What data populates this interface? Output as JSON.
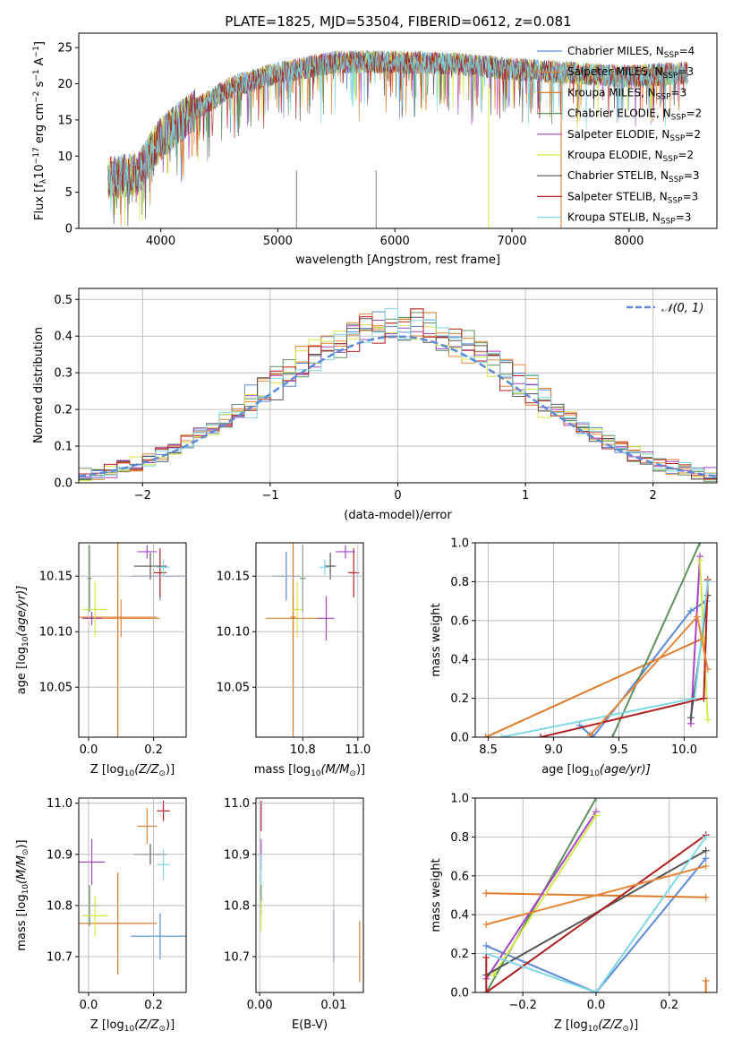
{
  "title": "PLATE=1825, MJD=53504, FIBERID=0612, z=0.081",
  "colors": {
    "Chabrier MILES": "#5b8ad6",
    "Salpeter MILES": "#e6873a",
    "Kroupa MILES": "#dd7a2a",
    "Chabrier ELODIE": "#5e8f5e",
    "Salpeter ELODIE": "#a845c4",
    "Kroupa ELODIE": "#d4e84a",
    "Chabrier STELIB": "#555555",
    "Salpeter STELIB": "#b02020",
    "Kroupa STELIB": "#80d8e6",
    "data": "#808080",
    "gauss": "#5b8ad6"
  },
  "chart_data": [
    {
      "type": "line",
      "xlabel": "wavelength [Angstrom, rest frame]",
      "ylabel": "Flux [f_λ 10^-17 erg cm^-2 s^-1 A^-1]",
      "xlim": [
        3300,
        8750
      ],
      "ylim": [
        0,
        27
      ],
      "xticks": [
        4000,
        5000,
        6000,
        7000,
        8000
      ],
      "yticks": [
        0,
        5,
        10,
        15,
        20,
        25
      ],
      "legend_position": "upper right",
      "spectrum_trend": {
        "x": [
          3550,
          3800,
          4000,
          4300,
          4600,
          5000,
          5500,
          6000,
          6500,
          7000,
          7500,
          8000,
          8500
        ],
        "y": [
          7,
          7.5,
          12.5,
          16.5,
          19.5,
          21.5,
          23,
          23,
          22.8,
          22,
          21.5,
          21,
          21.5
        ]
      },
      "legend": [
        {
          "name": "Chabrier MILES",
          "label": "Chabrier MILES, N",
          "sub": "SSP",
          "suffix": "=4"
        },
        {
          "name": "Salpeter MILES",
          "label": "Salpeter MILES, N",
          "sub": "SSP",
          "suffix": "=3"
        },
        {
          "name": "Kroupa MILES",
          "label": "Kroupa MILES, N",
          "sub": "SSP",
          "suffix": "=3"
        },
        {
          "name": "Chabrier ELODIE",
          "label": "Chabrier ELODIE, N",
          "sub": "SSP",
          "suffix": "=2"
        },
        {
          "name": "Salpeter ELODIE",
          "label": "Salpeter ELODIE, N",
          "sub": "SSP",
          "suffix": "=2"
        },
        {
          "name": "Kroupa ELODIE",
          "label": "Kroupa ELODIE, N",
          "sub": "SSP",
          "suffix": "=2"
        },
        {
          "name": "Chabrier STELIB",
          "label": "Chabrier STELIB, N",
          "sub": "SSP",
          "suffix": "=3"
        },
        {
          "name": "Salpeter STELIB",
          "label": "Salpeter STELIB, N",
          "sub": "SSP",
          "suffix": "=3"
        },
        {
          "name": "Kroupa STELIB",
          "label": "Kroupa STELIB, N",
          "sub": "SSP",
          "suffix": "=3"
        }
      ],
      "vertical_spikes": [
        5160,
        5840,
        6800,
        7420
      ]
    },
    {
      "type": "histogram",
      "xlabel": "(data-model)/error",
      "ylabel": "Normed distribution",
      "xlim": [
        -2.5,
        2.5
      ],
      "ylim": [
        0,
        0.53
      ],
      "xticks": [
        -2,
        -1,
        0,
        1,
        2
      ],
      "yticks": [
        0.0,
        0.1,
        0.2,
        0.3,
        0.4,
        0.5
      ],
      "grid": true,
      "gauss_label": "𝒩(0, 1)",
      "bins": [
        -2.5,
        2.5,
        50
      ],
      "series_order": [
        "Chabrier MILES",
        "Salpeter MILES",
        "Kroupa MILES",
        "Chabrier ELODIE",
        "Salpeter ELODIE",
        "Kroupa ELODIE",
        "Chabrier STELIB",
        "Salpeter STELIB",
        "Kroupa STELIB"
      ]
    },
    {
      "type": "errorbar",
      "xlabel": "Z [log10(Z/Z⊙)]",
      "ylabel": "age  [log10(age/yr)]",
      "xlim": [
        -0.03,
        0.3
      ],
      "ylim": [
        10.005,
        10.18
      ],
      "xticks": [
        0.0,
        0.2
      ],
      "yticks": [
        10.05,
        10.1,
        10.15
      ],
      "points": [
        {
          "name": "Chabrier MILES",
          "x": 0.22,
          "y": 10.15,
          "ex": 0.09,
          "ey": 0.022
        },
        {
          "name": "Salpeter MILES",
          "x": 0.1,
          "y": 10.112,
          "ex": 0.12,
          "ey": 0.017
        },
        {
          "name": "Kroupa MILES",
          "x": 0.09,
          "y": 10.113,
          "ex": 0.12,
          "ey": 0.11
        },
        {
          "name": "Chabrier ELODIE",
          "x": 0.003,
          "y": 10.148,
          "ex": 0.006,
          "ey": 0.03
        },
        {
          "name": "Salpeter ELODIE",
          "x": 0.01,
          "y": 10.112,
          "ex": 0.03,
          "ey": 0.006
        },
        {
          "name": "Kroupa ELODIE",
          "x": 0.02,
          "y": 10.12,
          "ex": 0.04,
          "ey": 0.025
        },
        {
          "name": "Chabrier STELIB",
          "x": 0.19,
          "y": 10.159,
          "ex": 0.05,
          "ey": 0.012
        },
        {
          "name": "Salpeter STELIB",
          "x": 0.22,
          "y": 10.153,
          "ex": 0.02,
          "ey": 0.022
        },
        {
          "name": "Kroupa STELIB",
          "x": 0.23,
          "y": 10.158,
          "ex": 0.02,
          "ey": 0.007
        },
        {
          "name": "Salpeter ELODIE",
          "x": 0.18,
          "y": 10.172,
          "ex": 0.03,
          "ey": 0.006
        }
      ]
    },
    {
      "type": "errorbar",
      "xlabel": "mass [log10(M/M⊙)]",
      "ylabel": "",
      "xlim": [
        10.63,
        11.02
      ],
      "ylim": [
        10.005,
        10.18
      ],
      "xticks": [
        10.8,
        11.0
      ],
      "yticks": [
        10.05,
        10.1,
        10.15
      ],
      "points": [
        {
          "name": "Chabrier MILES",
          "x": 10.74,
          "y": 10.15,
          "ex": 0.05,
          "ey": 0.022
        },
        {
          "name": "Salpeter MILES",
          "x": 10.765,
          "y": 10.112,
          "ex": 0.1,
          "ey": 0.017
        },
        {
          "name": "Kroupa MILES",
          "x": 10.765,
          "y": 10.113,
          "ex": 0.01,
          "ey": 0.11
        },
        {
          "name": "Chabrier ELODIE",
          "x": 10.8,
          "y": 10.148,
          "ex": 0.01,
          "ey": 0.03
        },
        {
          "name": "Salpeter ELODIE",
          "x": 10.885,
          "y": 10.112,
          "ex": 0.03,
          "ey": 0.02
        },
        {
          "name": "Kroupa ELODIE",
          "x": 10.78,
          "y": 10.12,
          "ex": 0.02,
          "ey": 0.025
        },
        {
          "name": "Chabrier STELIB",
          "x": 10.9,
          "y": 10.159,
          "ex": 0.02,
          "ey": 0.012
        },
        {
          "name": "Salpeter STELIB",
          "x": 10.985,
          "y": 10.153,
          "ex": 0.02,
          "ey": 0.022
        },
        {
          "name": "Kroupa STELIB",
          "x": 10.88,
          "y": 10.158,
          "ex": 0.02,
          "ey": 0.007
        },
        {
          "name": "Salpeter ELODIE",
          "x": 10.955,
          "y": 10.172,
          "ex": 0.035,
          "ey": 0.006
        }
      ]
    },
    {
      "type": "line",
      "xlabel": "age  [log10(age/yr)]",
      "ylabel": "mass weight",
      "xlim": [
        8.4,
        10.25
      ],
      "ylim": [
        0,
        1.0
      ],
      "xticks": [
        8.5,
        9.0,
        9.5,
        10.0
      ],
      "yticks": [
        0.0,
        0.2,
        0.4,
        0.6,
        0.8,
        1.0
      ],
      "grid": true,
      "series": [
        {
          "name": "Chabrier MILES",
          "x": [
            9.2,
            9.3,
            10.05,
            10.17
          ],
          "y": [
            0.06,
            0.0,
            0.65,
            0.7
          ]
        },
        {
          "name": "Kroupa MILES",
          "x": [
            8.48,
            10.15
          ],
          "y": [
            0.0,
            0.51
          ]
        },
        {
          "name": "Chabrier ELODIE",
          "x": [
            9.45,
            10.12
          ],
          "y": [
            0.0,
            1.0
          ]
        },
        {
          "name": "Salpeter ELODIE",
          "x": [
            10.05,
            10.12
          ],
          "y": [
            0.07,
            0.93
          ]
        },
        {
          "name": "Kroupa ELODIE",
          "x": [
            10.12,
            10.18
          ],
          "y": [
            0.91,
            0.09
          ]
        },
        {
          "name": "Chabrier STELIB",
          "x": [
            10.05,
            10.18
          ],
          "y": [
            0.1,
            0.73
          ]
        },
        {
          "name": "Salpeter STELIB",
          "x": [
            8.9,
            10.15,
            10.18
          ],
          "y": [
            0.0,
            0.2,
            0.81
          ]
        },
        {
          "name": "Kroupa STELIB",
          "x": [
            8.6,
            10.08,
            10.18
          ],
          "y": [
            0.0,
            0.2,
            0.8
          ]
        },
        {
          "name": "Salpeter MILES",
          "x": [
            9.28,
            10.1,
            10.18
          ],
          "y": [
            0.01,
            0.62,
            0.35
          ]
        }
      ]
    },
    {
      "type": "errorbar",
      "xlabel": "Z [log10(Z/Z⊙)]",
      "ylabel": "mass [log10(M/M⊙)]",
      "xlim": [
        -0.03,
        0.3
      ],
      "ylim": [
        10.63,
        11.01
      ],
      "xticks": [
        0.0,
        0.2
      ],
      "yticks": [
        10.7,
        10.8,
        10.9,
        11.0
      ],
      "points": [
        {
          "name": "Chabrier MILES",
          "x": 0.22,
          "y": 10.74,
          "ex": 0.09,
          "ey": 0.045
        },
        {
          "name": "Kroupa MILES",
          "x": 0.09,
          "y": 10.765,
          "ex": 0.12,
          "ey": 0.1
        },
        {
          "name": "Chabrier ELODIE",
          "x": 0.003,
          "y": 10.8,
          "ex": 0.03,
          "ey": 0.04
        },
        {
          "name": "Salpeter ELODIE",
          "x": 0.01,
          "y": 10.885,
          "ex": 0.04,
          "ey": 0.045
        },
        {
          "name": "Kroupa ELODIE",
          "x": 0.02,
          "y": 10.78,
          "ex": 0.04,
          "ey": 0.04
        },
        {
          "name": "Chabrier STELIB",
          "x": 0.19,
          "y": 10.9,
          "ex": 0.05,
          "ey": 0.02
        },
        {
          "name": "Salpeter STELIB",
          "x": 0.23,
          "y": 10.985,
          "ex": 0.02,
          "ey": 0.02
        },
        {
          "name": "Kroupa STELIB",
          "x": 0.23,
          "y": 10.88,
          "ex": 0.02,
          "ey": 0.03
        },
        {
          "name": "Salpeter MILES",
          "x": 0.18,
          "y": 10.955,
          "ex": 0.03,
          "ey": 0.035
        }
      ]
    },
    {
      "type": "errorbar",
      "xlabel": "E(B-V)",
      "ylabel": "",
      "xlim": [
        -0.0005,
        0.014
      ],
      "ylim": [
        10.63,
        11.01
      ],
      "xticks": [
        0.0,
        0.01
      ],
      "yticks": [
        10.7,
        10.8,
        10.9,
        11.0
      ],
      "points": [
        {
          "name": "Chabrier MILES",
          "x": 0.01,
          "y": 10.74,
          "ex": 0.0,
          "ey": 0.05
        },
        {
          "name": "Kroupa MILES",
          "x": 0.0135,
          "y": 10.71,
          "ex": 0.0,
          "ey": 0.06
        },
        {
          "name": "Chabrier ELODIE",
          "x": 0.0002,
          "y": 10.81,
          "ex": 0.0,
          "ey": 0.03
        },
        {
          "name": "Salpeter ELODIE",
          "x": 0.0002,
          "y": 10.9,
          "ex": 0.0,
          "ey": 0.03
        },
        {
          "name": "Kroupa ELODIE",
          "x": 0.0002,
          "y": 10.78,
          "ex": 0.0,
          "ey": 0.03
        },
        {
          "name": "Salpeter STELIB",
          "x": 0.0002,
          "y": 10.975,
          "ex": 0.0,
          "ey": 0.03
        },
        {
          "name": "Kroupa STELIB",
          "x": 0.0002,
          "y": 10.87,
          "ex": 0.0,
          "ey": 0.03
        }
      ]
    },
    {
      "type": "line",
      "xlabel": "Z [log10(Z/Z⊙)]",
      "ylabel": "mass weight",
      "xlim": [
        -0.33,
        0.33
      ],
      "ylim": [
        0,
        1.0
      ],
      "xticks": [
        -0.2,
        0.0,
        0.2
      ],
      "yticks": [
        0.0,
        0.2,
        0.4,
        0.6,
        0.8,
        1.0
      ],
      "grid": true,
      "series": [
        {
          "name": "Chabrier MILES",
          "x": [
            -0.3,
            0.0,
            0.3
          ],
          "y": [
            0.24,
            0.0,
            0.69
          ]
        },
        {
          "name": "Kroupa MILES",
          "x": [
            -0.3,
            0.3
          ],
          "y": [
            0.51,
            0.49
          ]
        },
        {
          "name": "Chabrier ELODIE",
          "x": [
            -0.3,
            0.0
          ],
          "y": [
            0.0,
            1.0
          ]
        },
        {
          "name": "Salpeter ELODIE",
          "x": [
            -0.3,
            0.0
          ],
          "y": [
            0.07,
            0.93
          ]
        },
        {
          "name": "Kroupa ELODIE",
          "x": [
            -0.28,
            0.0
          ],
          "y": [
            0.09,
            0.91
          ]
        },
        {
          "name": "Chabrier STELIB",
          "x": [
            -0.3,
            0.3
          ],
          "y": [
            0.09,
            0.73
          ]
        },
        {
          "name": "Salpeter STELIB",
          "x": [
            -0.3,
            0.3
          ],
          "y": [
            0.0,
            0.81
          ]
        },
        {
          "name": "Kroupa STELIB",
          "x": [
            -0.3,
            0.0,
            0.3
          ],
          "y": [
            0.2,
            0.0,
            0.8
          ]
        },
        {
          "name": "Salpeter MILES",
          "x": [
            -0.3,
            0.3
          ],
          "y": [
            0.35,
            0.65
          ]
        },
        {
          "name": "Salpeter STELIB",
          "x": [
            -0.3,
            -0.3
          ],
          "y": [
            0.0,
            0.18
          ]
        },
        {
          "name": "Kroupa MILES",
          "x": [
            0.3,
            0.3
          ],
          "y": [
            0.0,
            0.06
          ]
        }
      ]
    }
  ],
  "texts": {
    "p1_ylabel": "Flux [f",
    "p1_ylabel_sub": "λ",
    "p1_ylabel_rest": "10",
    "p1_ylabel_sup1": "−17",
    "p1_ylabel_rest2": " erg cm",
    "p1_ylabel_sup2": "−2",
    "p1_ylabel_rest3": " s",
    "p1_ylabel_sup3": "−1",
    "p1_ylabel_rest4": " A",
    "p1_ylabel_sup4": "−1",
    "p1_ylabel_end": "]",
    "p3_ylabel_a": "age  [log",
    "p3_ylabel_sub": "10",
    "p3_ylabel_b": "(age/yr)]",
    "z_label_a": "Z [log",
    "z_label_sub": "10",
    "z_label_b": "(Z/Z",
    "z_label_sun": "⊙",
    "z_label_c": ")]",
    "mass_label_a": "mass [log",
    "mass_label_sub": "10",
    "mass_label_b": "(M/M",
    "mass_label_sun": "⊙",
    "mass_label_c": ")]",
    "age_label_a": "age  [log",
    "age_label_sub": "10",
    "age_label_b": "(age/yr)]"
  }
}
